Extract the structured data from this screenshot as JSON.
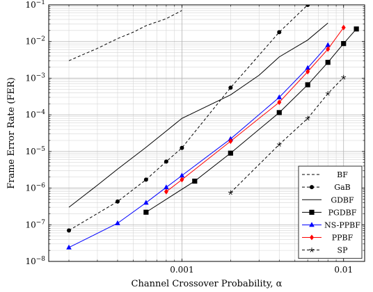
{
  "chart_data": {
    "type": "line",
    "xlabel": "Channel Crossover Probability, α",
    "ylabel": "Frame Error Rate (FER)",
    "x_scale": "log",
    "y_scale": "log",
    "xlim": [
      0.00015,
      0.0135
    ],
    "ylim": [
      1e-08,
      0.1
    ],
    "grid": true,
    "legend_position": "bottom-right",
    "x_tick_labels": [
      {
        "value": 0.001,
        "label": "0.001"
      },
      {
        "value": 0.01,
        "label": "0.01"
      }
    ],
    "y_tick_labels": [
      {
        "value": 1e-08,
        "base": "10",
        "exp": "−8"
      },
      {
        "value": 1e-07,
        "base": "10",
        "exp": "−7"
      },
      {
        "value": 1e-06,
        "base": "10",
        "exp": "−6"
      },
      {
        "value": 1e-05,
        "base": "10",
        "exp": "−5"
      },
      {
        "value": 0.0001,
        "base": "10",
        "exp": "−4"
      },
      {
        "value": 0.001,
        "base": "10",
        "exp": "−3"
      },
      {
        "value": 0.01,
        "base": "10",
        "exp": "−2"
      },
      {
        "value": 0.1,
        "base": "10",
        "exp": "−1"
      }
    ],
    "series": [
      {
        "name": "BF",
        "color": "#000000",
        "dash": "4,3",
        "marker": "none",
        "x": [
          0.0002,
          0.0003,
          0.0004,
          0.0005,
          0.0006,
          0.0008,
          0.001
        ],
        "y": [
          0.003,
          0.0065,
          0.012,
          0.018,
          0.027,
          0.042,
          0.07
        ]
      },
      {
        "name": "GaB",
        "color": "#000000",
        "dash": "4,3",
        "marker": "circle",
        "x": [
          0.0002,
          0.0004,
          0.0006,
          0.0008,
          0.001,
          0.002,
          0.004,
          0.006
        ],
        "y": [
          7e-08,
          4.3e-07,
          1.7e-06,
          5.3e-06,
          1.25e-05,
          0.00055,
          0.018,
          0.1
        ]
      },
      {
        "name": "GDBF",
        "color": "#000000",
        "dash": "",
        "marker": "none",
        "x": [
          0.0002,
          0.0003,
          0.0004,
          0.0006,
          0.0008,
          0.001,
          0.002,
          0.003,
          0.004,
          0.006,
          0.008
        ],
        "y": [
          3e-07,
          1.2e-06,
          3.3e-06,
          1.3e-05,
          3.6e-05,
          8e-05,
          0.00035,
          0.0012,
          0.0038,
          0.011,
          0.032
        ]
      },
      {
        "name": "PGDBF",
        "color": "#000000",
        "dash": "",
        "marker": "square",
        "x": [
          0.0006,
          0.0012,
          0.002,
          0.004,
          0.006,
          0.008,
          0.01,
          0.012
        ],
        "y": [
          2.2e-07,
          1.55e-06,
          9e-06,
          0.000115,
          0.00066,
          0.0027,
          0.0088,
          0.022
        ]
      },
      {
        "name": "NS-PPBF",
        "color": "#0000ff",
        "dash": "",
        "marker": "triangle",
        "x": [
          0.0002,
          0.0004,
          0.0006,
          0.0008,
          0.001,
          0.002,
          0.004,
          0.006,
          0.008
        ],
        "y": [
          2.4e-08,
          1.1e-07,
          4e-07,
          1.05e-06,
          2.2e-06,
          2.2e-05,
          0.0003,
          0.0019,
          0.008
        ]
      },
      {
        "name": "PPBF",
        "color": "#ff0000",
        "dash": "",
        "marker": "diamond",
        "x": [
          0.0008,
          0.001,
          0.002,
          0.004,
          0.006,
          0.008,
          0.01
        ],
        "y": [
          8e-07,
          1.7e-06,
          1.9e-05,
          0.00022,
          0.0015,
          0.0062,
          0.024
        ]
      },
      {
        "name": "SP",
        "color": "#000000",
        "dash": "4,3",
        "marker": "star",
        "x": [
          0.002,
          0.004,
          0.006,
          0.008,
          0.01
        ],
        "y": [
          7.5e-07,
          1.55e-05,
          8e-05,
          0.00038,
          0.00105
        ]
      }
    ]
  }
}
